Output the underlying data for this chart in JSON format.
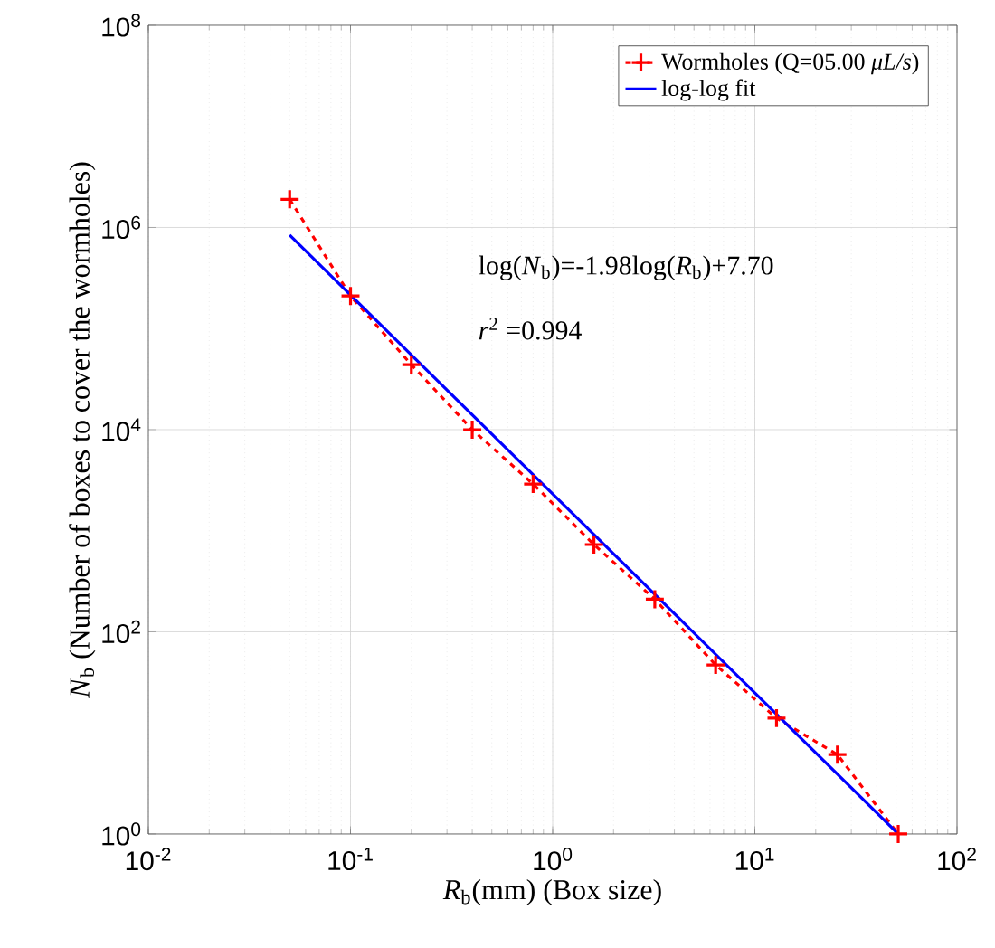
{
  "chart_data": {
    "type": "line",
    "xlabel": "*R*$_{b}$(mm) (Box size)",
    "ylabel": "*N*$_{b}$ (Number of boxes to cover the wormholes)",
    "log": "xy",
    "grid": true,
    "legend": "top right",
    "xlim": [
      0.01,
      100
    ],
    "ylim": [
      1,
      100000000
    ],
    "xticks": [
      {
        "value": 0.01,
        "label": "10$^{-2}$"
      },
      {
        "value": 0.1,
        "label": "10$^{-1}$"
      },
      {
        "value": 1,
        "label": "10$^{0}$"
      },
      {
        "value": 10,
        "label": "10$^{1}$"
      },
      {
        "value": 100,
        "label": "10$^{2}$"
      }
    ],
    "yticks": [
      {
        "value": 1,
        "label": "10$^{0}$"
      },
      {
        "value": 100,
        "label": "10$^{2}$"
      },
      {
        "value": 10000,
        "label": "10$^{4}$"
      },
      {
        "value": 1000000,
        "label": "10$^{6}$"
      },
      {
        "value": 100000000,
        "label": "10$^{8}$"
      }
    ],
    "series": [
      {
        "name": "Wormholes (Q=05.00 *μL/s*)",
        "color": "#ff0000",
        "marker": "cross",
        "line_style": "dashed",
        "x": [
          0.05,
          0.1,
          0.2,
          0.4,
          0.8,
          1.6,
          3.2,
          6.4,
          12.8,
          25.6,
          51.2
        ],
        "values": [
          1900000,
          210000,
          44000,
          10000,
          2900,
          730,
          210,
          47,
          14,
          6.1,
          1
        ]
      },
      {
        "name": "log-log fit",
        "color": "#0000ff",
        "marker": "none",
        "line_style": "solid",
        "x": [
          0.05,
          51.2
        ],
        "values": [
          840000,
          1
        ]
      }
    ],
    "annotations": [
      "log(*N*$_{b}$)=-1.98log(*R*$_{b}$)+7.70",
      "*r*$^{2}$ =0.994"
    ]
  }
}
